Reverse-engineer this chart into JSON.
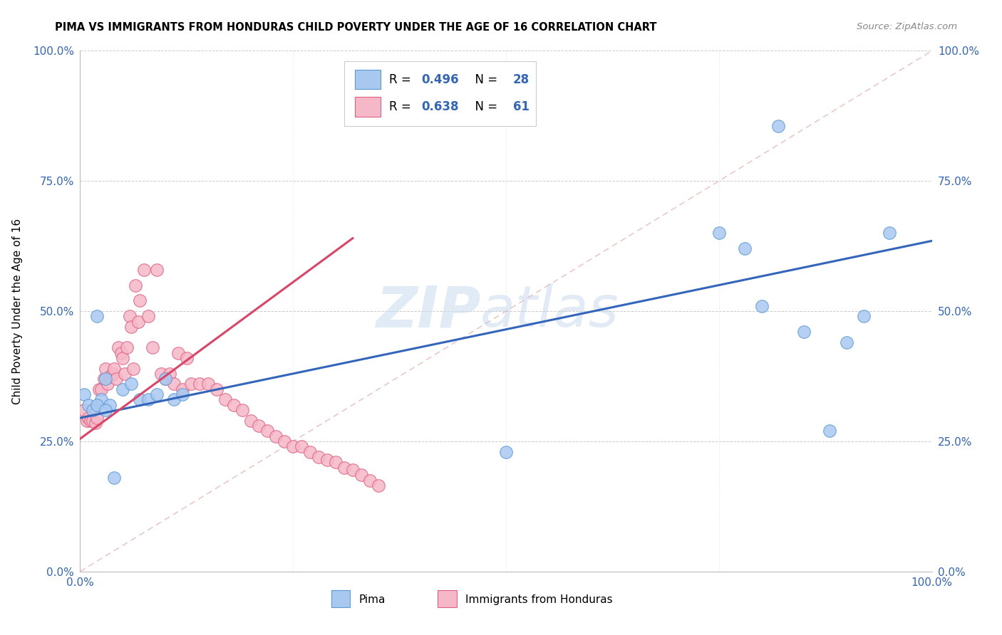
{
  "title": "PIMA VS IMMIGRANTS FROM HONDURAS CHILD POVERTY UNDER THE AGE OF 16 CORRELATION CHART",
  "source": "Source: ZipAtlas.com",
  "ylabel": "Child Poverty Under the Age of 16",
  "xlim": [
    0,
    1
  ],
  "ylim": [
    0,
    1
  ],
  "xtick_positions": [
    0.0,
    1.0
  ],
  "xtick_labels": [
    "0.0%",
    "100.0%"
  ],
  "ytick_positions": [
    0.0,
    0.25,
    0.5,
    0.75,
    1.0
  ],
  "ytick_labels": [
    "0.0%",
    "25.0%",
    "50.0%",
    "75.0%",
    "100.0%"
  ],
  "pima_color": "#A8C8F0",
  "pima_edge_color": "#5B9BD5",
  "honduras_color": "#F5B8C8",
  "honduras_edge_color": "#E06080",
  "pima_line_color": "#3366BB",
  "honduras_line_color": "#DD4466",
  "diagonal_color": "#E8C0C0",
  "legend_R_color": "#3366BB",
  "pima_R": 0.496,
  "pima_N": 28,
  "honduras_R": 0.638,
  "honduras_N": 61,
  "grid_color": "#CCCCCC",
  "background_color": "#FFFFFF",
  "pima_scatter_x": [
    0.005,
    0.01,
    0.015,
    0.02,
    0.025,
    0.03,
    0.035,
    0.04,
    0.05,
    0.06,
    0.07,
    0.08,
    0.09,
    0.1,
    0.11,
    0.12,
    0.02,
    0.03,
    0.5,
    0.78,
    0.8,
    0.82,
    0.85,
    0.88,
    0.9,
    0.92,
    0.75,
    0.95
  ],
  "pima_scatter_y": [
    0.34,
    0.32,
    0.31,
    0.49,
    0.33,
    0.37,
    0.32,
    0.18,
    0.35,
    0.36,
    0.33,
    0.33,
    0.34,
    0.37,
    0.33,
    0.34,
    0.32,
    0.31,
    0.23,
    0.62,
    0.51,
    0.855,
    0.46,
    0.27,
    0.44,
    0.49,
    0.65,
    0.65
  ],
  "honduras_scatter_x": [
    0.005,
    0.008,
    0.01,
    0.012,
    0.015,
    0.018,
    0.02,
    0.022,
    0.025,
    0.028,
    0.03,
    0.032,
    0.035,
    0.038,
    0.04,
    0.042,
    0.045,
    0.048,
    0.05,
    0.052,
    0.055,
    0.058,
    0.06,
    0.062,
    0.065,
    0.068,
    0.07,
    0.075,
    0.08,
    0.085,
    0.09,
    0.095,
    0.1,
    0.105,
    0.11,
    0.115,
    0.12,
    0.125,
    0.13,
    0.14,
    0.15,
    0.16,
    0.17,
    0.18,
    0.19,
    0.2,
    0.21,
    0.22,
    0.23,
    0.24,
    0.25,
    0.26,
    0.27,
    0.28,
    0.29,
    0.3,
    0.31,
    0.32,
    0.33,
    0.34,
    0.35
  ],
  "honduras_scatter_y": [
    0.31,
    0.29,
    0.295,
    0.29,
    0.29,
    0.285,
    0.295,
    0.35,
    0.35,
    0.37,
    0.39,
    0.36,
    0.375,
    0.38,
    0.39,
    0.37,
    0.43,
    0.42,
    0.41,
    0.38,
    0.43,
    0.49,
    0.47,
    0.39,
    0.55,
    0.48,
    0.52,
    0.58,
    0.49,
    0.43,
    0.58,
    0.38,
    0.37,
    0.38,
    0.36,
    0.42,
    0.35,
    0.41,
    0.36,
    0.36,
    0.36,
    0.35,
    0.33,
    0.32,
    0.31,
    0.29,
    0.28,
    0.27,
    0.26,
    0.25,
    0.24,
    0.24,
    0.23,
    0.22,
    0.215,
    0.21,
    0.2,
    0.195,
    0.185,
    0.175,
    0.165
  ],
  "pima_line_x": [
    0.0,
    1.0
  ],
  "pima_line_y": [
    0.295,
    0.635
  ],
  "honduras_line_x": [
    0.0,
    0.32
  ],
  "honduras_line_y": [
    0.255,
    0.64
  ]
}
